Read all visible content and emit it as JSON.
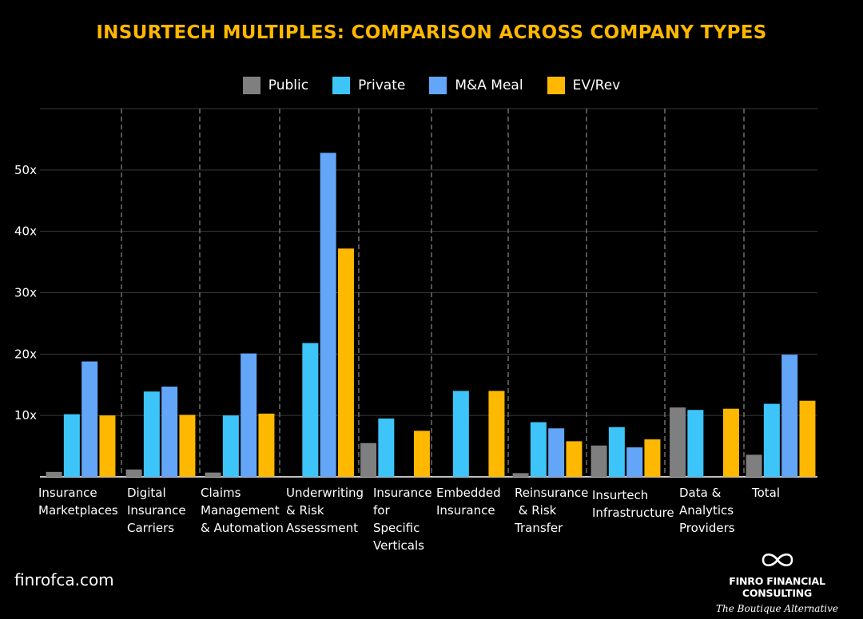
{
  "chart_data": {
    "type": "bar",
    "title": "INSURTECH MULTIPLES: COMPARISON ACROSS COMPANY TYPES",
    "xlabel": "",
    "ylabel": "",
    "ylim": [
      0,
      60
    ],
    "yticks": [
      10,
      20,
      30,
      40,
      50
    ],
    "ytick_labels": [
      "10x",
      "20x",
      "30x",
      "40x",
      "50x"
    ],
    "grid": "horizontal",
    "legend_position": "top-center",
    "categories": [
      [
        "Insurance",
        "Marketplaces"
      ],
      [
        "Digital",
        "Insurance",
        "Carriers"
      ],
      [
        "Claims",
        "Management",
        "& Automation"
      ],
      [
        "Underwriting",
        "& Risk",
        "Assessment"
      ],
      [
        "Insurance",
        "for",
        "Specific",
        "Verticals"
      ],
      [
        "Embedded",
        "Insurance"
      ],
      [
        "Reinsurance",
        " & Risk",
        "Transfer"
      ],
      [
        "Insurtech",
        "Infrastructure"
      ],
      [
        "Data &",
        "Analytics",
        "Providers"
      ],
      [
        "Total"
      ]
    ],
    "series": [
      {
        "name": "Public",
        "color": "#7F7F7F",
        "values": [
          0.8,
          1.2,
          0.7,
          0,
          5.5,
          0,
          0.6,
          5.1,
          11.3,
          3.6
        ]
      },
      {
        "name": "Private",
        "color": "#3DC5FA",
        "values": [
          10.2,
          13.9,
          10,
          21.8,
          9.5,
          14,
          8.9,
          8.1,
          10.9,
          11.9
        ]
      },
      {
        "name": "M&A Meal",
        "color": "#63A6F8",
        "values": [
          18.8,
          14.7,
          20.1,
          52.8,
          0,
          0,
          7.9,
          4.8,
          0,
          19.9
        ]
      },
      {
        "name": "EV/Rev",
        "color": "#FFB800",
        "values": [
          10,
          10.1,
          10.3,
          37.2,
          7.5,
          14,
          5.8,
          6.1,
          11.1,
          12.4
        ]
      }
    ]
  },
  "footer": {
    "website": "finrofca.com",
    "brand_name": "FINRO FINANCIAL CONSULTING",
    "brand_tagline": "The Boutique Alternative"
  },
  "logo_icon": "infinity-icon"
}
